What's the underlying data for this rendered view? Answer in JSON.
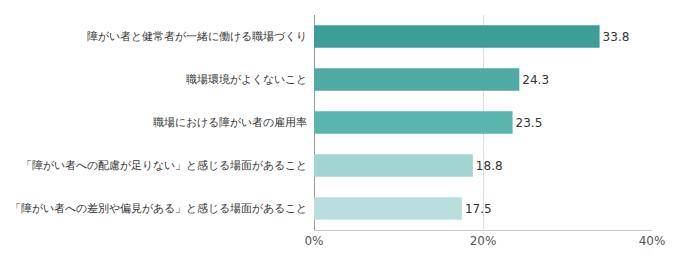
{
  "chart_data": {
    "type": "bar",
    "orientation": "horizontal",
    "categories": [
      "「障がい者への差別や偏見がある」と感じる場面があること",
      "「障がい者への配慮が足りない」と感じる場面があること",
      "職場における障がい者の雇用率",
      "職場環境がよくないこと",
      "障がい者と健常者が一緒に働ける職場づくり"
    ],
    "values": [
      17.5,
      18.8,
      23.5,
      24.3,
      33.8
    ],
    "colors": [
      "#b8dedd",
      "#a2d4d2",
      "#5ab5ae",
      "#4eaaa3",
      "#3d9e97"
    ],
    "xlim": [
      0,
      40
    ],
    "xticks": [
      {
        "value": 0,
        "label": "0%"
      },
      {
        "value": 20,
        "label": "20%"
      },
      {
        "value": 40,
        "label": "40%"
      }
    ],
    "grid": true,
    "data_labels": true
  }
}
